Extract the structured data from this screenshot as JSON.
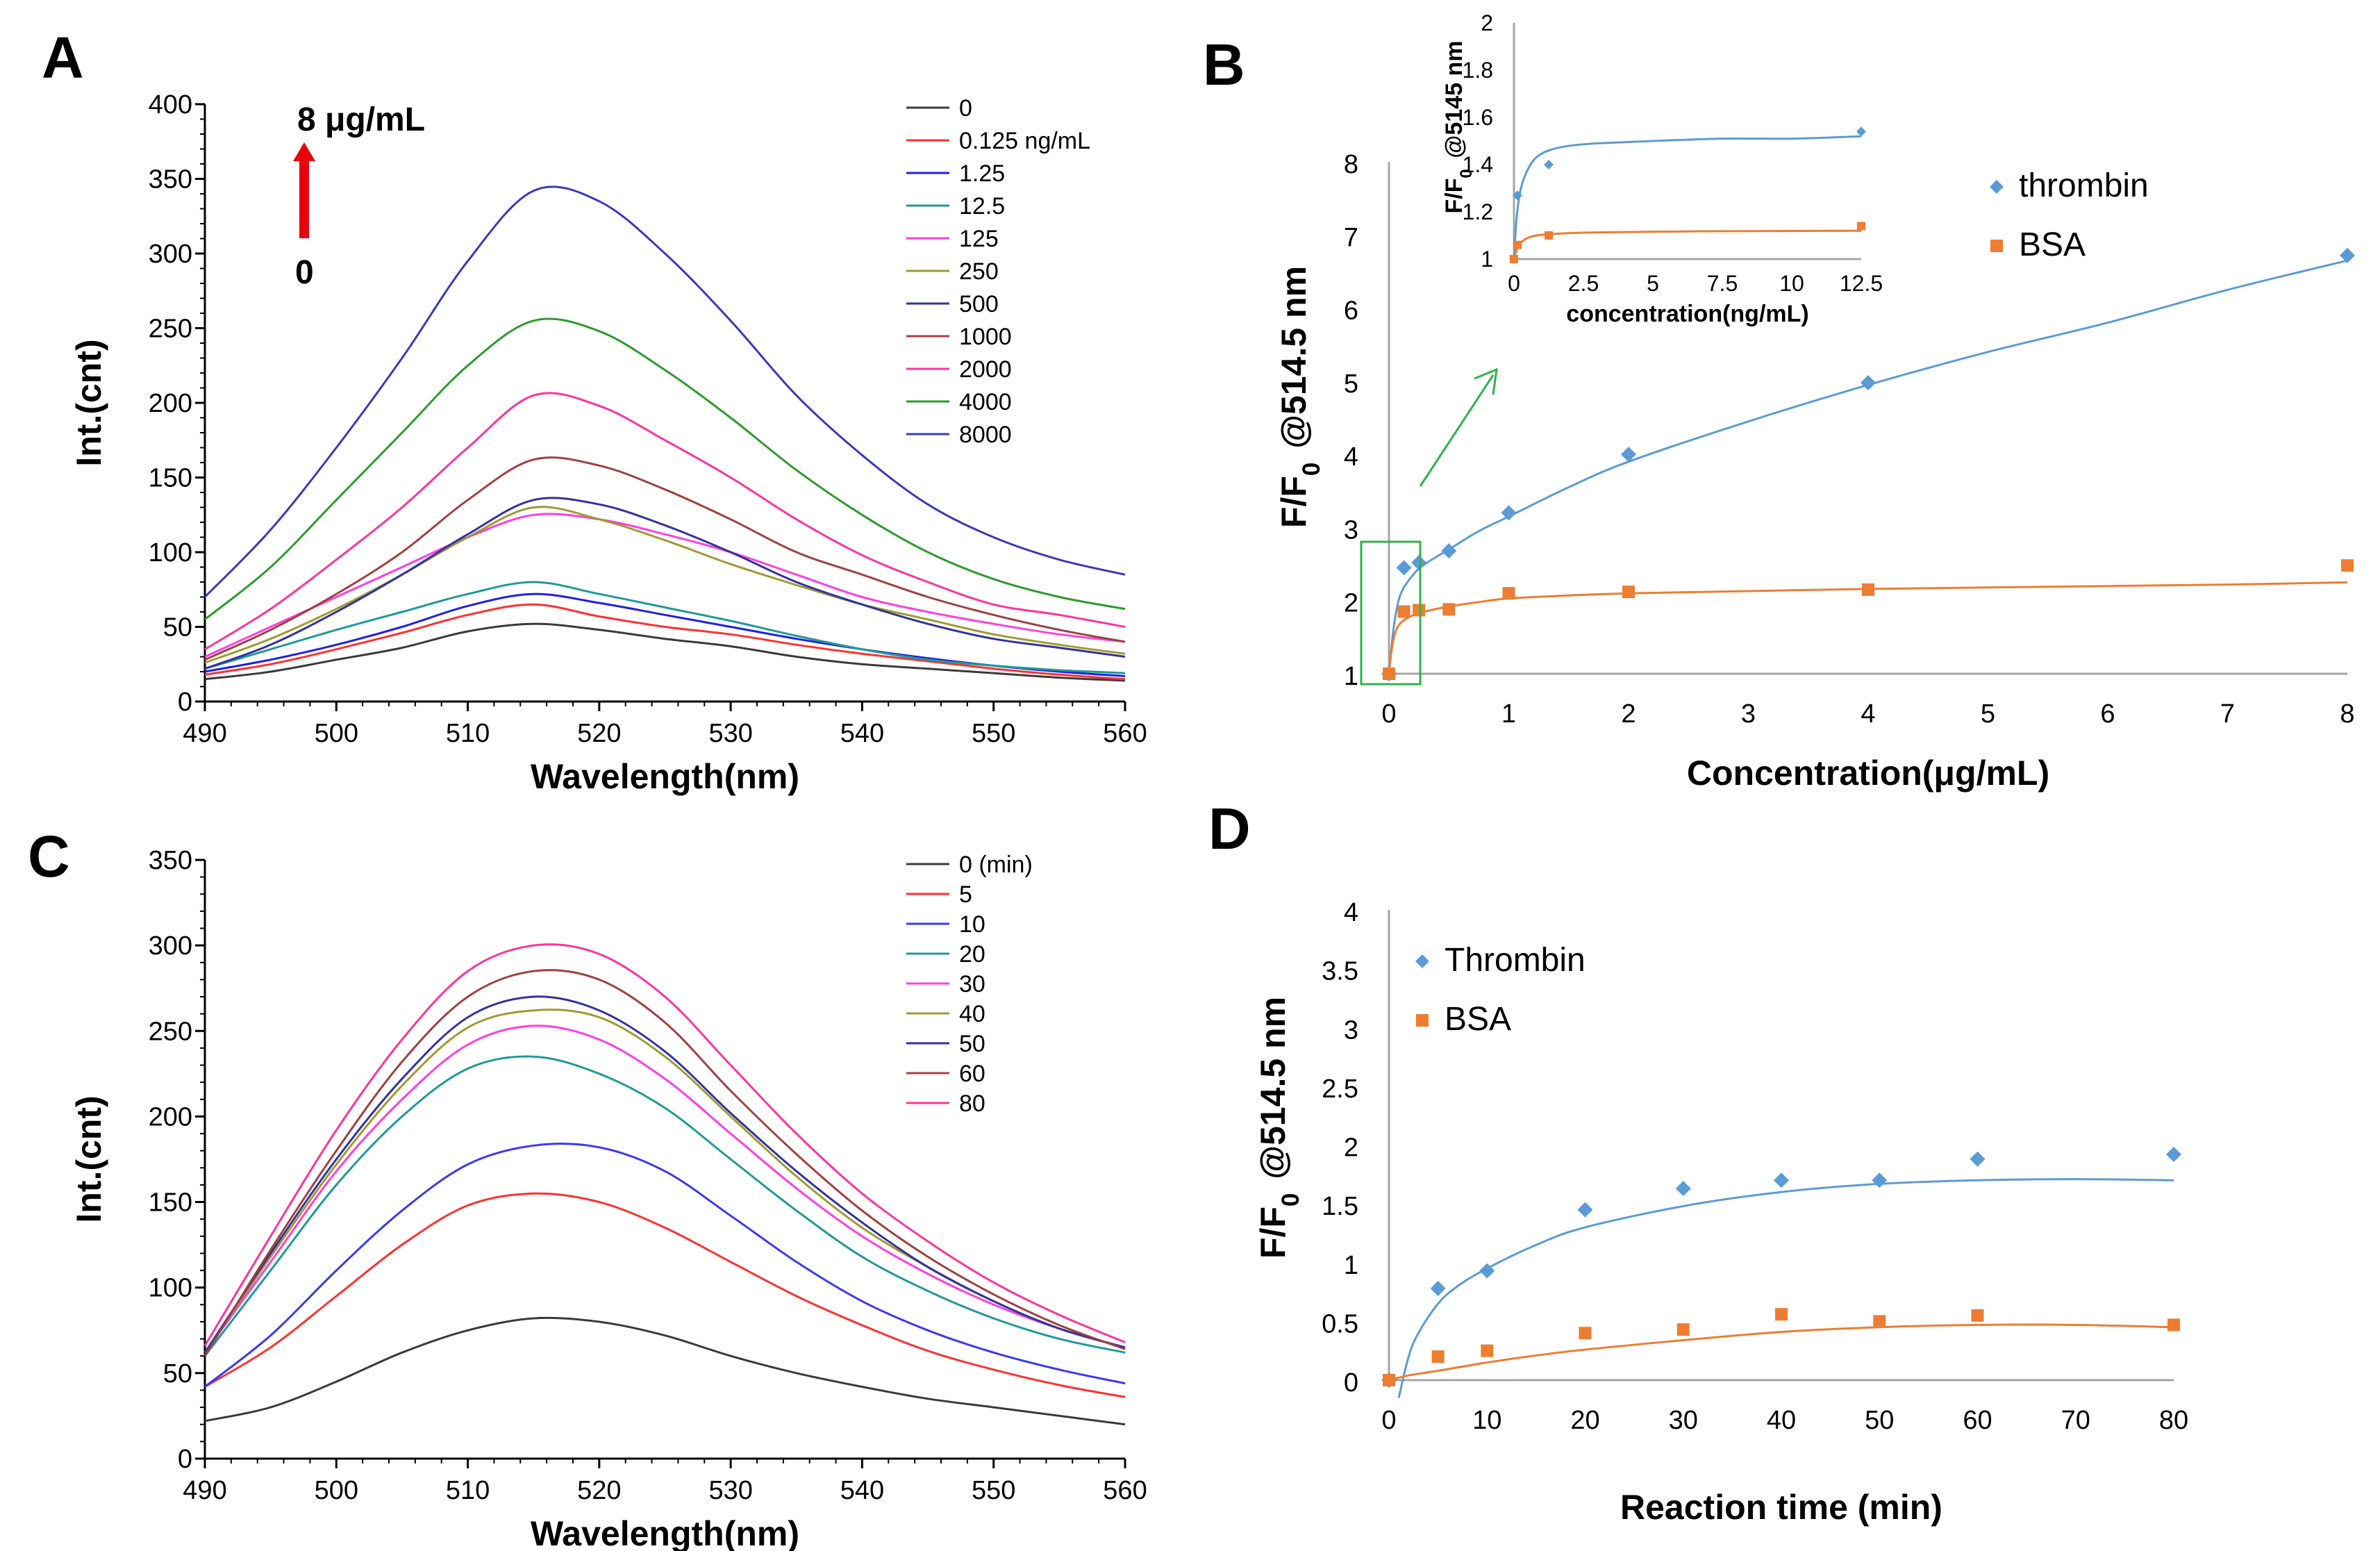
{
  "colors": {
    "thrombin": "#5B9BD5",
    "bsa": "#ED7D31",
    "arrow_red": "#E8000B",
    "arrow_green": "#2EB24B",
    "box_green": "#2EB24B",
    "axis": "#000000",
    "guide": "#A6A6A6"
  },
  "chart_data": [
    {
      "panel": "A",
      "type": "line",
      "title": "",
      "xlabel": "Wavelength(nm)",
      "ylabel": "Int.(cnt)",
      "xlim": [
        490,
        560
      ],
      "ylim": [
        0,
        400
      ],
      "xticks": [
        "490",
        "500",
        "510",
        "520",
        "530",
        "540",
        "550",
        "560"
      ],
      "yticks": [
        "0",
        "50",
        "100",
        "150",
        "200",
        "250",
        "300",
        "350",
        "400"
      ],
      "annotation": {
        "top": "8 μg/mL",
        "bottom": "0"
      },
      "legend_position": "top-right",
      "x": [
        490,
        495,
        500,
        505,
        510,
        515,
        520,
        525,
        530,
        535,
        540,
        545,
        550,
        555,
        560
      ],
      "series": [
        {
          "name": "0",
          "color": "#3a3a3a",
          "values": [
            15,
            20,
            28,
            36,
            47,
            52,
            48,
            42,
            37,
            30,
            25,
            22,
            19,
            16,
            14
          ]
        },
        {
          "name": "0.125 ng/mL",
          "color": "#FF3030",
          "values": [
            18,
            25,
            35,
            46,
            58,
            65,
            57,
            50,
            45,
            38,
            32,
            27,
            22,
            18,
            15
          ]
        },
        {
          "name": "1.25",
          "color": "#2020E0",
          "values": [
            20,
            28,
            38,
            50,
            64,
            72,
            66,
            58,
            50,
            42,
            35,
            29,
            24,
            20,
            17
          ]
        },
        {
          "name": "12.5",
          "color": "#1E9A96",
          "values": [
            22,
            35,
            48,
            60,
            72,
            80,
            72,
            63,
            54,
            44,
            35,
            28,
            24,
            21,
            19
          ]
        },
        {
          "name": "125",
          "color": "#FF3DE0",
          "values": [
            30,
            50,
            70,
            90,
            110,
            125,
            122,
            112,
            100,
            85,
            70,
            60,
            52,
            45,
            40
          ]
        },
        {
          "name": "250",
          "color": "#A09A30",
          "values": [
            26,
            42,
            62,
            85,
            110,
            130,
            122,
            108,
            92,
            78,
            65,
            55,
            45,
            38,
            32
          ]
        },
        {
          "name": "500",
          "color": "#3232A0",
          "values": [
            22,
            38,
            60,
            85,
            112,
            135,
            132,
            118,
            100,
            80,
            65,
            52,
            42,
            36,
            30
          ]
        },
        {
          "name": "1000",
          "color": "#A04040",
          "values": [
            28,
            48,
            72,
            100,
            135,
            162,
            158,
            142,
            122,
            100,
            85,
            70,
            58,
            48,
            40
          ]
        },
        {
          "name": "2000",
          "color": "#FF3399",
          "values": [
            35,
            62,
            95,
            130,
            170,
            205,
            198,
            175,
            150,
            122,
            98,
            80,
            65,
            58,
            50
          ]
        },
        {
          "name": "4000",
          "color": "#2E9A2E",
          "values": [
            55,
            90,
            135,
            180,
            225,
            255,
            248,
            222,
            190,
            155,
            125,
            100,
            82,
            70,
            62
          ]
        },
        {
          "name": "8000",
          "color": "#3A3AB8",
          "values": [
            70,
            115,
            170,
            230,
            295,
            342,
            335,
            300,
            255,
            205,
            165,
            132,
            110,
            95,
            85
          ]
        }
      ]
    },
    {
      "panel": "B",
      "type": "scatter",
      "title": "",
      "xlabel": "Concentration(μg/mL)",
      "ylabel": "F/F0 @514.5 nm",
      "xlim": [
        0,
        8
      ],
      "ylim": [
        1,
        8
      ],
      "xticks": [
        "0",
        "1",
        "2",
        "3",
        "4",
        "5",
        "6",
        "7",
        "8"
      ],
      "yticks": [
        "1",
        "2",
        "3",
        "4",
        "5",
        "6",
        "7",
        "8"
      ],
      "legend_position": "right",
      "series": [
        {
          "name": "thrombin",
          "marker": "diamond",
          "x": [
            0,
            0.125,
            0.25,
            0.5,
            1,
            2,
            4,
            8
          ],
          "y": [
            1.0,
            2.45,
            2.52,
            2.68,
            3.2,
            4.0,
            4.98,
            6.72
          ],
          "fit_x": [
            0,
            0.02,
            0.05,
            0.1,
            0.2,
            0.3,
            0.5,
            0.75,
            1,
            1.5,
            2,
            3,
            4,
            5,
            6,
            7,
            8
          ],
          "fit_y": [
            1.0,
            1.35,
            1.75,
            2.1,
            2.35,
            2.5,
            2.7,
            2.95,
            3.15,
            3.55,
            3.9,
            4.45,
            4.95,
            5.4,
            5.8,
            6.25,
            6.65
          ]
        },
        {
          "name": "BSA",
          "marker": "square",
          "x": [
            0,
            0.125,
            0.25,
            0.5,
            1,
            2,
            4,
            8
          ],
          "y": [
            1.0,
            1.85,
            1.87,
            1.88,
            2.1,
            2.12,
            2.15,
            2.48
          ],
          "fit_x": [
            0,
            0.02,
            0.05,
            0.1,
            0.2,
            0.3,
            0.5,
            0.75,
            1,
            1.5,
            2,
            3,
            4,
            5,
            6,
            7,
            8
          ],
          "fit_y": [
            1.0,
            1.3,
            1.55,
            1.7,
            1.8,
            1.85,
            1.92,
            1.98,
            2.03,
            2.07,
            2.1,
            2.13,
            2.16,
            2.18,
            2.2,
            2.22,
            2.25
          ]
        }
      ],
      "inset": {
        "xlabel": "concentration(ng/mL)",
        "ylabel": "F/F0 @5145 nm",
        "xlim": [
          0,
          12.5
        ],
        "ylim": [
          1,
          2
        ],
        "xticks": [
          "0",
          "2.5",
          "5",
          "7.5",
          "10",
          "12.5"
        ],
        "yticks": [
          "1",
          "1.2",
          "1.4",
          "1.6",
          "1.8",
          "2"
        ],
        "series": [
          {
            "name": "thrombin",
            "x": [
              0,
              0.125,
              1.25,
              12.5
            ],
            "y": [
              1.0,
              1.27,
              1.4,
              1.54
            ],
            "fit_x": [
              0,
              0.1,
              0.25,
              0.5,
              0.8,
              1.25,
              2,
              3,
              5,
              7.5,
              10,
              12.5
            ],
            "fit_y": [
              1.0,
              1.18,
              1.3,
              1.38,
              1.43,
              1.46,
              1.48,
              1.49,
              1.5,
              1.51,
              1.51,
              1.52
            ]
          },
          {
            "name": "BSA",
            "x": [
              0,
              0.125,
              1.25,
              12.5
            ],
            "y": [
              1.0,
              1.06,
              1.1,
              1.14
            ],
            "fit_x": [
              0,
              0.1,
              0.25,
              0.5,
              0.8,
              1.25,
              2,
              3,
              5,
              7.5,
              10,
              12.5
            ],
            "fit_y": [
              1.0,
              1.04,
              1.07,
              1.09,
              1.1,
              1.105,
              1.11,
              1.113,
              1.116,
              1.118,
              1.119,
              1.12
            ]
          }
        ]
      }
    },
    {
      "panel": "C",
      "type": "line",
      "title": "",
      "xlabel": "Wavelength(nm)",
      "ylabel": "Int.(cnt)",
      "xlim": [
        490,
        560
      ],
      "ylim": [
        0,
        350
      ],
      "xticks": [
        "490",
        "500",
        "510",
        "520",
        "530",
        "540",
        "550",
        "560"
      ],
      "yticks": [
        "0",
        "50",
        "100",
        "150",
        "200",
        "250",
        "300",
        "350"
      ],
      "legend_position": "top-right",
      "x": [
        490,
        495,
        500,
        505,
        510,
        515,
        520,
        525,
        530,
        535,
        540,
        545,
        550,
        555,
        560
      ],
      "series": [
        {
          "name": "0  (min)",
          "color": "#3a3a3a",
          "values": [
            22,
            30,
            45,
            62,
            75,
            82,
            80,
            72,
            60,
            50,
            42,
            35,
            30,
            25,
            20
          ]
        },
        {
          "name": "5",
          "color": "#FF3030",
          "values": [
            42,
            65,
            95,
            125,
            148,
            155,
            150,
            135,
            115,
            95,
            78,
            63,
            52,
            43,
            36
          ]
        },
        {
          "name": "10",
          "color": "#3A3AEE",
          "values": [
            42,
            72,
            110,
            145,
            172,
            183,
            182,
            168,
            142,
            115,
            92,
            75,
            62,
            52,
            44
          ]
        },
        {
          "name": "20",
          "color": "#1E9A96",
          "values": [
            60,
            110,
            160,
            200,
            228,
            235,
            225,
            205,
            175,
            145,
            118,
            98,
            82,
            70,
            62
          ]
        },
        {
          "name": "30",
          "color": "#FF3DE0",
          "values": [
            62,
            115,
            168,
            210,
            242,
            253,
            245,
            222,
            190,
            158,
            130,
            108,
            90,
            76,
            65
          ]
        },
        {
          "name": "40",
          "color": "#A09A30",
          "values": [
            62,
            118,
            172,
            218,
            252,
            262,
            258,
            235,
            200,
            165,
            135,
            112,
            92,
            76,
            65
          ]
        },
        {
          "name": "50",
          "color": "#3232A0",
          "values": [
            62,
            120,
            175,
            222,
            258,
            270,
            262,
            238,
            202,
            168,
            138,
            112,
            92,
            76,
            65
          ]
        },
        {
          "name": "60",
          "color": "#A04040",
          "values": [
            60,
            122,
            180,
            232,
            270,
            285,
            280,
            255,
            215,
            178,
            145,
            118,
            96,
            78,
            64
          ]
        },
        {
          "name": "80",
          "color": "#FF3399",
          "values": [
            66,
            130,
            192,
            245,
            285,
            300,
            295,
            270,
            230,
            190,
            155,
            127,
            103,
            84,
            68
          ]
        }
      ]
    },
    {
      "panel": "D",
      "type": "scatter",
      "title": "",
      "xlabel": "Reaction time (min)",
      "ylabel": "F/F0 @514.5 nm",
      "xlim": [
        0,
        80
      ],
      "ylim": [
        0,
        4
      ],
      "xticks": [
        "0",
        "10",
        "20",
        "30",
        "40",
        "50",
        "60",
        "70",
        "80"
      ],
      "yticks": [
        "0",
        "0.5",
        "1",
        "1.5",
        "2",
        "2.5",
        "3",
        "3.5",
        "4"
      ],
      "legend_position": "top-left",
      "series": [
        {
          "name": "Thrombin",
          "marker": "diamond",
          "x": [
            0,
            5,
            10,
            20,
            30,
            40,
            50,
            60,
            80
          ],
          "y": [
            0.0,
            0.78,
            0.93,
            1.45,
            1.63,
            1.7,
            1.7,
            1.88,
            1.92
          ],
          "fit_x": [
            1,
            2,
            3,
            5,
            7,
            10,
            15,
            20,
            30,
            40,
            50,
            60,
            70,
            80
          ],
          "fit_y": [
            -0.15,
            0.2,
            0.4,
            0.65,
            0.8,
            0.95,
            1.15,
            1.3,
            1.48,
            1.6,
            1.67,
            1.7,
            1.71,
            1.7
          ]
        },
        {
          "name": "BSA",
          "marker": "square",
          "x": [
            0,
            5,
            10,
            20,
            30,
            40,
            50,
            60,
            80
          ],
          "y": [
            0.0,
            0.2,
            0.25,
            0.4,
            0.43,
            0.56,
            0.5,
            0.55,
            0.47
          ],
          "fit_x": [
            0,
            2,
            5,
            10,
            15,
            20,
            30,
            40,
            50,
            60,
            70,
            80
          ],
          "fit_y": [
            0.0,
            0.04,
            0.08,
            0.15,
            0.21,
            0.26,
            0.34,
            0.41,
            0.45,
            0.47,
            0.47,
            0.45
          ]
        }
      ]
    }
  ]
}
